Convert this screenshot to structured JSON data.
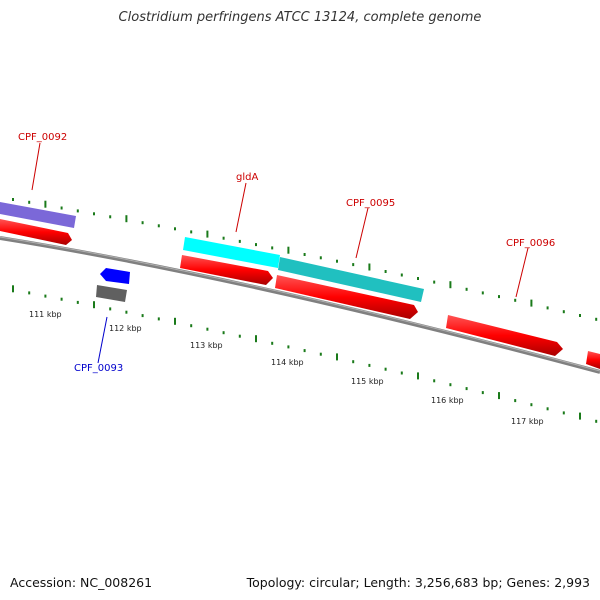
{
  "title": "Clostridium perfringens ATCC 13124, complete genome",
  "footer": {
    "accession": "Accession: NC_008261",
    "summary": "Topology: circular; Length: 3,256,683 bp; Genes: 2,993"
  },
  "colors": {
    "backbone": "#808080",
    "tick": "#1a7a1a",
    "cds_forward": "#ff0000",
    "cds_reverse": "#ff0000",
    "label_red": "#cc0000",
    "label_blue": "#0000cc",
    "gene_purple": "#7b68d8",
    "gene_cyan": "#00ffff",
    "gene_teal": "#20c0c0",
    "gene_blue": "#0000ff",
    "gene_gray": "#606060"
  },
  "scale_labels": [
    "111 kbp",
    "112 kbp",
    "113 kbp",
    "114 kbp",
    "115 kbp",
    "116 kbp",
    "117 kbp"
  ],
  "gene_labels": [
    {
      "name": "CPF_0092",
      "color": "red"
    },
    {
      "name": "gldA",
      "color": "red"
    },
    {
      "name": "CPF_0095",
      "color": "red"
    },
    {
      "name": "CPF_0096",
      "color": "red"
    },
    {
      "name": "CPF_0093",
      "color": "blue"
    }
  ]
}
